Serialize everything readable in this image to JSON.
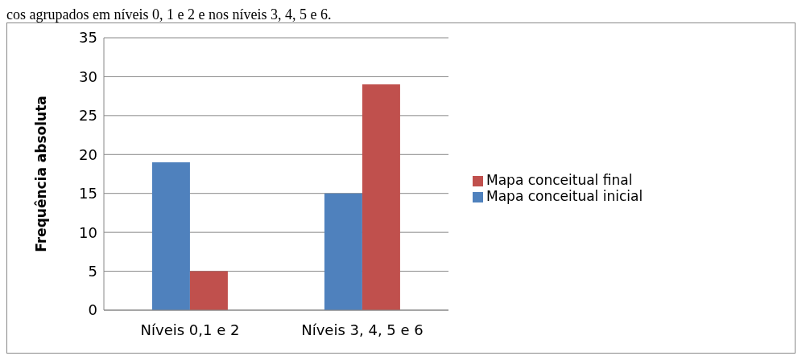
{
  "chart_data": {
    "type": "bar",
    "ylabel": "Frequência absoluta",
    "annotations": [
      "cos agrupados em níveis 0, 1 e 2 e nos níveis 3, 4, 5 e 6."
    ],
    "categories": [
      "Níveis 0,1 e 2",
      "Níveis 3, 4, 5 e 6"
    ],
    "series": [
      {
        "name": "Mapa conceitual inicial",
        "color": "#4f81bd",
        "values": [
          19,
          15
        ]
      },
      {
        "name": "Mapa conceitual final",
        "color": "#c0504d",
        "values": [
          5,
          29
        ]
      }
    ],
    "ylim": [
      0,
      35
    ],
    "yticks": [
      0,
      5,
      10,
      15,
      20,
      25,
      30,
      35
    ],
    "grid": "y",
    "legend": "right"
  }
}
